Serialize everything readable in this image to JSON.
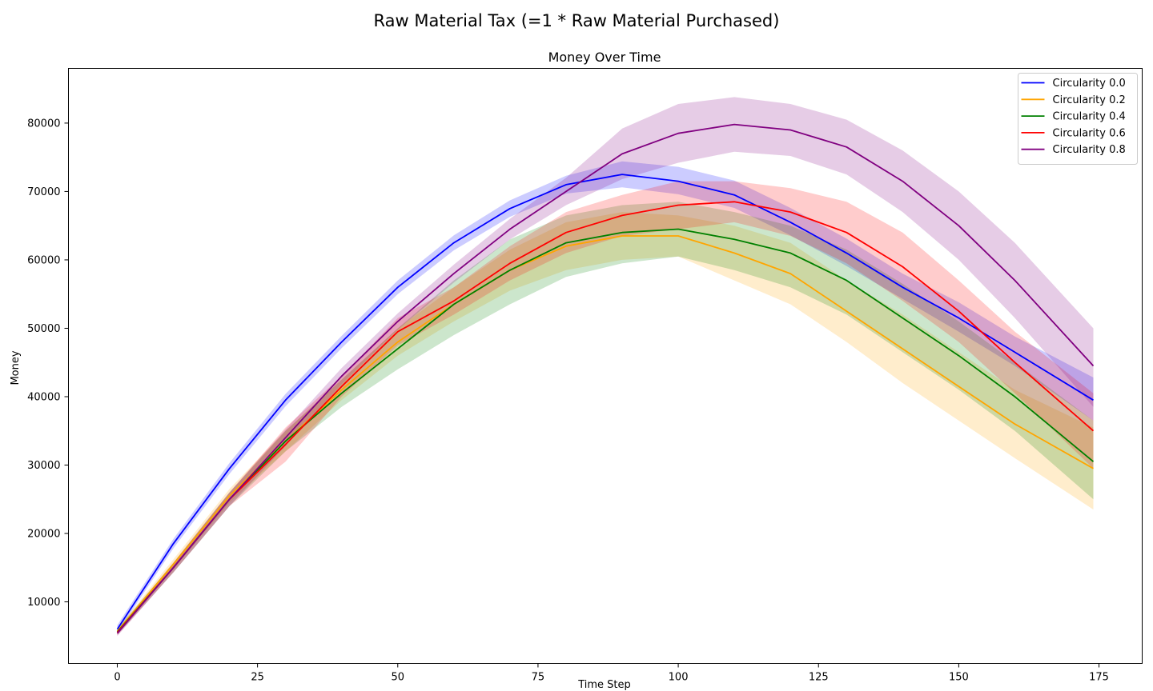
{
  "suptitle": "Raw Material Tax (=1 * Raw Material Purchased)",
  "chart_data": {
    "type": "line",
    "title": "Money Over Time",
    "xlabel": "Time Step",
    "ylabel": "Money",
    "xlim": [
      -8.7,
      182.7
    ],
    "ylim": [
      1000,
      88000
    ],
    "xticks": [
      0,
      25,
      50,
      75,
      100,
      125,
      150,
      175
    ],
    "yticks": [
      10000,
      20000,
      30000,
      40000,
      50000,
      60000,
      70000,
      80000
    ],
    "grid": false,
    "legend_position": "top-right",
    "shaded_band": "mean ± spread",
    "x": [
      0,
      10,
      20,
      30,
      40,
      50,
      60,
      70,
      80,
      90,
      100,
      110,
      120,
      130,
      140,
      150,
      160,
      174
    ],
    "series": [
      {
        "name": "Circularity 0.0",
        "color": "#0000ff",
        "values": [
          6000,
          18500,
          29500,
          39500,
          48000,
          56000,
          62500,
          67500,
          71000,
          72500,
          71500,
          69500,
          65500,
          61000,
          56000,
          51500,
          46500,
          39500
        ],
        "lower": [
          5500,
          17800,
          28700,
          38600,
          47100,
          55000,
          61400,
          66300,
          69700,
          70600,
          69600,
          67600,
          63600,
          59100,
          54300,
          49500,
          44500,
          36500
        ],
        "upper": [
          6600,
          19200,
          30300,
          40400,
          48900,
          57000,
          63600,
          68700,
          72300,
          74400,
          73600,
          71600,
          67600,
          63100,
          58000,
          53800,
          48800,
          42800
        ]
      },
      {
        "name": "Circularity 0.2",
        "color": "#ffa500",
        "values": [
          5700,
          15500,
          25500,
          33500,
          41000,
          48000,
          53500,
          58500,
          62000,
          63500,
          63500,
          61000,
          58000,
          52500,
          47000,
          41500,
          36000,
          29500
        ],
        "lower": [
          5300,
          14800,
          24500,
          32000,
          39500,
          46000,
          51000,
          55500,
          58500,
          60000,
          60500,
          57000,
          53500,
          48000,
          42000,
          36500,
          31000,
          23500
        ],
        "upper": [
          6100,
          16200,
          26500,
          35000,
          42500,
          50000,
          56000,
          61500,
          65500,
          67000,
          66500,
          65000,
          62500,
          57000,
          52000,
          46500,
          41000,
          35500
        ]
      },
      {
        "name": "Circularity 0.4",
        "color": "#008000",
        "values": [
          5600,
          15000,
          25000,
          33500,
          40500,
          47000,
          53500,
          58500,
          62500,
          64000,
          64500,
          63000,
          61000,
          57000,
          51500,
          46000,
          40000,
          30500
        ],
        "lower": [
          5200,
          14300,
          24000,
          32000,
          38500,
          44000,
          49000,
          53500,
          57500,
          59500,
          60500,
          58500,
          56000,
          52000,
          46500,
          41000,
          35000,
          25000
        ],
        "upper": [
          6000,
          15700,
          26000,
          35000,
          42500,
          50000,
          57000,
          63000,
          66500,
          68000,
          68500,
          67000,
          65000,
          61500,
          56500,
          51000,
          45000,
          36500
        ]
      },
      {
        "name": "Circularity 0.6",
        "color": "#ff0000",
        "values": [
          5500,
          15000,
          25000,
          33000,
          41500,
          49500,
          54000,
          59500,
          64000,
          66500,
          68000,
          68500,
          67000,
          64000,
          59000,
          52500,
          45000,
          35000
        ],
        "lower": [
          5100,
          14300,
          24000,
          30500,
          40000,
          47500,
          52000,
          57000,
          61000,
          63500,
          64500,
          65500,
          63500,
          59500,
          54000,
          48000,
          40500,
          29500
        ],
        "upper": [
          5900,
          15700,
          26000,
          35500,
          43000,
          51500,
          56000,
          62000,
          67000,
          69500,
          71500,
          71500,
          70500,
          68500,
          64000,
          57000,
          49500,
          40500
        ]
      },
      {
        "name": "Circularity 0.8",
        "color": "#800080",
        "values": [
          5400,
          15000,
          25000,
          34000,
          43000,
          51000,
          58000,
          64500,
          70000,
          75500,
          78500,
          79800,
          79000,
          76500,
          71500,
          65000,
          57000,
          44500
        ],
        "lower": [
          5000,
          14300,
          24000,
          32800,
          41800,
          49800,
          56700,
          63000,
          68000,
          71800,
          74200,
          75800,
          75200,
          72500,
          67000,
          60000,
          51500,
          38500
        ],
        "upper": [
          5800,
          15700,
          26000,
          35200,
          44200,
          52200,
          59300,
          66000,
          72000,
          79200,
          82800,
          83800,
          82800,
          80500,
          76000,
          70000,
          62500,
          50000
        ]
      }
    ]
  }
}
